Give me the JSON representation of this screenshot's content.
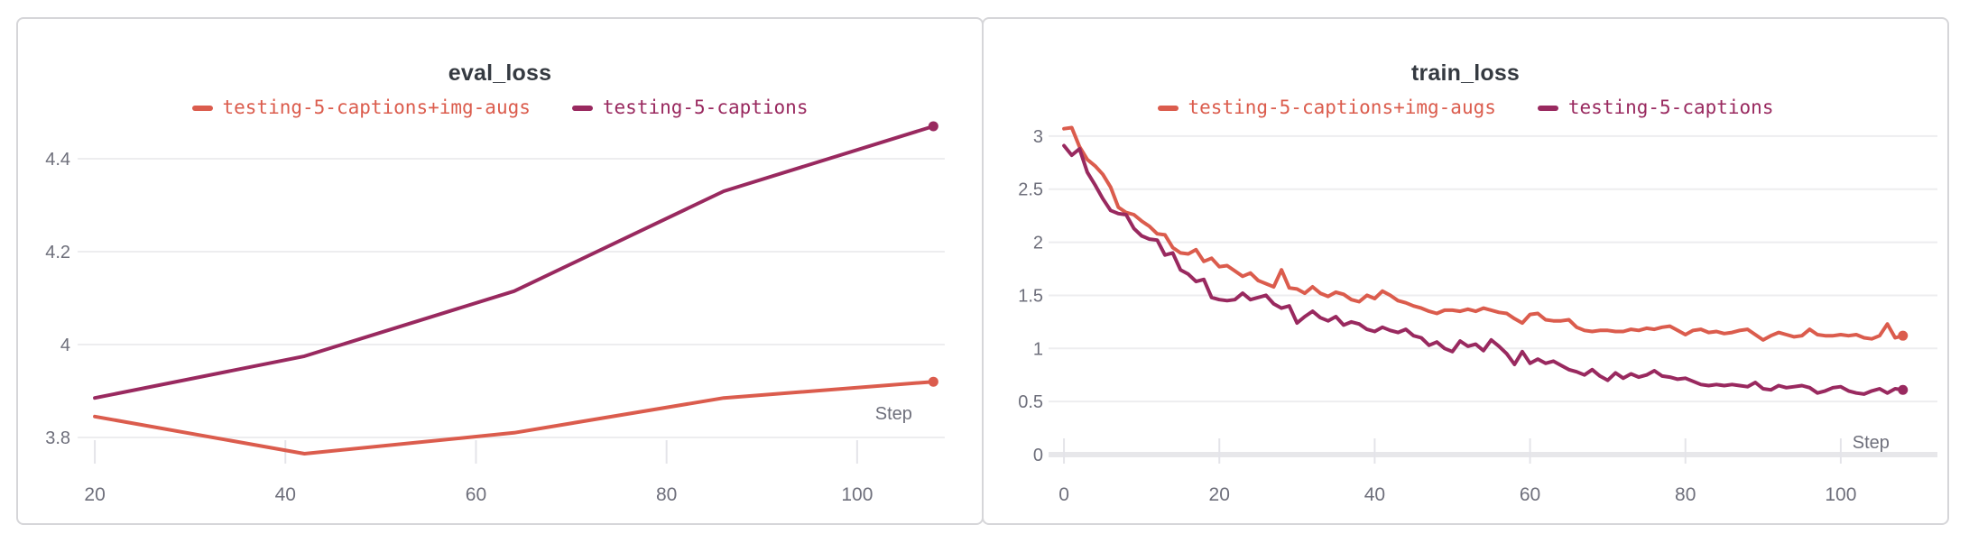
{
  "page": {
    "background": "#ffffff"
  },
  "colors": {
    "accent_red": "#db5c4d",
    "accent_purple": "#99295f",
    "grid": "#ededef",
    "tick_mark": "#e4e4e9",
    "zero_axis_bar": "#e7e7ea",
    "tick_label": "#6e6f7b",
    "title_text": "#353a41",
    "card_border": "#d6d6d9",
    "card_background": "#ffffff"
  },
  "chart_data": [
    {
      "type": "line",
      "title": "eval_loss",
      "xlabel": "Step",
      "grid": true,
      "legend_position": "top-center",
      "xlim": [
        20,
        108
      ],
      "ylim": [
        3.8,
        4.4
      ],
      "x_ticks": [
        {
          "v": 20,
          "label": "20"
        },
        {
          "v": 40,
          "label": "40"
        },
        {
          "v": 60,
          "label": "60"
        },
        {
          "v": 80,
          "label": "80"
        },
        {
          "v": 100,
          "label": "100"
        }
      ],
      "y_ticks": [
        {
          "v": 3.8,
          "label": "3.8"
        },
        {
          "v": 4.0,
          "label": "4"
        },
        {
          "v": 4.2,
          "label": "4.2"
        },
        {
          "v": 4.4,
          "label": "4.4"
        }
      ],
      "series": [
        {
          "name": "testing-5-captions+img-augs",
          "color": "#db5c4d",
          "end_dot": true,
          "points": [
            [
              20,
              3.845
            ],
            [
              42,
              3.765
            ],
            [
              64,
              3.81
            ],
            [
              86,
              3.885
            ],
            [
              108,
              3.92
            ]
          ]
        },
        {
          "name": "testing-5-captions",
          "color": "#99295f",
          "end_dot": true,
          "points": [
            [
              20,
              3.885
            ],
            [
              42,
              3.975
            ],
            [
              64,
              4.115
            ],
            [
              86,
              4.33
            ],
            [
              108,
              4.47
            ]
          ]
        }
      ]
    },
    {
      "type": "line",
      "title": "train_loss",
      "xlabel": "Step",
      "grid": true,
      "legend_position": "top-center",
      "xlim": [
        0,
        108
      ],
      "ylim": [
        0,
        3
      ],
      "x_ticks": [
        {
          "v": 0,
          "label": "0"
        },
        {
          "v": 20,
          "label": "20"
        },
        {
          "v": 40,
          "label": "40"
        },
        {
          "v": 60,
          "label": "60"
        },
        {
          "v": 80,
          "label": "80"
        },
        {
          "v": 100,
          "label": "100"
        }
      ],
      "y_ticks": [
        {
          "v": 0,
          "label": "0"
        },
        {
          "v": 0.5,
          "label": "0.5"
        },
        {
          "v": 1,
          "label": "1"
        },
        {
          "v": 1.5,
          "label": "1.5"
        },
        {
          "v": 2,
          "label": "2"
        },
        {
          "v": 2.5,
          "label": "2.5"
        },
        {
          "v": 3,
          "label": "3"
        }
      ],
      "series": [
        {
          "name": "testing-5-captions+img-augs",
          "color": "#db5c4d",
          "end_dot": true,
          "points": [
            [
              0,
              3.07
            ],
            [
              1,
              3.08
            ],
            [
              2,
              2.9
            ],
            [
              3,
              2.78
            ],
            [
              4,
              2.72
            ],
            [
              5,
              2.64
            ],
            [
              6,
              2.52
            ],
            [
              7,
              2.33
            ],
            [
              8,
              2.28
            ],
            [
              9,
              2.26
            ],
            [
              10,
              2.2
            ],
            [
              11,
              2.15
            ],
            [
              12,
              2.08
            ],
            [
              13,
              2.07
            ],
            [
              14,
              1.95
            ],
            [
              15,
              1.9
            ],
            [
              16,
              1.89
            ],
            [
              17,
              1.93
            ],
            [
              18,
              1.82
            ],
            [
              19,
              1.85
            ],
            [
              20,
              1.77
            ],
            [
              21,
              1.78
            ],
            [
              22,
              1.73
            ],
            [
              23,
              1.68
            ],
            [
              24,
              1.71
            ],
            [
              25,
              1.64
            ],
            [
              26,
              1.61
            ],
            [
              27,
              1.58
            ],
            [
              28,
              1.74
            ],
            [
              29,
              1.57
            ],
            [
              30,
              1.56
            ],
            [
              31,
              1.52
            ],
            [
              32,
              1.58
            ],
            [
              33,
              1.52
            ],
            [
              34,
              1.49
            ],
            [
              35,
              1.53
            ],
            [
              36,
              1.51
            ],
            [
              37,
              1.46
            ],
            [
              38,
              1.44
            ],
            [
              39,
              1.5
            ],
            [
              40,
              1.47
            ],
            [
              41,
              1.54
            ],
            [
              42,
              1.5
            ],
            [
              43,
              1.45
            ],
            [
              44,
              1.43
            ],
            [
              45,
              1.4
            ],
            [
              46,
              1.38
            ],
            [
              47,
              1.35
            ],
            [
              48,
              1.33
            ],
            [
              49,
              1.36
            ],
            [
              50,
              1.36
            ],
            [
              51,
              1.35
            ],
            [
              52,
              1.37
            ],
            [
              53,
              1.35
            ],
            [
              54,
              1.38
            ],
            [
              55,
              1.36
            ],
            [
              56,
              1.34
            ],
            [
              57,
              1.33
            ],
            [
              58,
              1.28
            ],
            [
              59,
              1.24
            ],
            [
              60,
              1.32
            ],
            [
              61,
              1.33
            ],
            [
              62,
              1.27
            ],
            [
              63,
              1.26
            ],
            [
              64,
              1.26
            ],
            [
              65,
              1.27
            ],
            [
              66,
              1.2
            ],
            [
              67,
              1.17
            ],
            [
              68,
              1.16
            ],
            [
              69,
              1.17
            ],
            [
              70,
              1.17
            ],
            [
              71,
              1.16
            ],
            [
              72,
              1.16
            ],
            [
              73,
              1.18
            ],
            [
              74,
              1.17
            ],
            [
              75,
              1.19
            ],
            [
              76,
              1.18
            ],
            [
              77,
              1.2
            ],
            [
              78,
              1.21
            ],
            [
              79,
              1.17
            ],
            [
              80,
              1.13
            ],
            [
              81,
              1.17
            ],
            [
              82,
              1.18
            ],
            [
              83,
              1.15
            ],
            [
              84,
              1.16
            ],
            [
              85,
              1.14
            ],
            [
              86,
              1.15
            ],
            [
              87,
              1.17
            ],
            [
              88,
              1.18
            ],
            [
              89,
              1.13
            ],
            [
              90,
              1.08
            ],
            [
              91,
              1.12
            ],
            [
              92,
              1.15
            ],
            [
              93,
              1.13
            ],
            [
              94,
              1.11
            ],
            [
              95,
              1.12
            ],
            [
              96,
              1.18
            ],
            [
              97,
              1.13
            ],
            [
              98,
              1.12
            ],
            [
              99,
              1.12
            ],
            [
              100,
              1.13
            ],
            [
              101,
              1.12
            ],
            [
              102,
              1.13
            ],
            [
              103,
              1.1
            ],
            [
              104,
              1.09
            ],
            [
              105,
              1.12
            ],
            [
              106,
              1.23
            ],
            [
              107,
              1.1
            ],
            [
              108,
              1.12
            ]
          ]
        },
        {
          "name": "testing-5-captions",
          "color": "#99295f",
          "end_dot": true,
          "points": [
            [
              0,
              2.91
            ],
            [
              1,
              2.82
            ],
            [
              2,
              2.88
            ],
            [
              3,
              2.66
            ],
            [
              4,
              2.54
            ],
            [
              5,
              2.41
            ],
            [
              6,
              2.3
            ],
            [
              7,
              2.27
            ],
            [
              8,
              2.26
            ],
            [
              9,
              2.13
            ],
            [
              10,
              2.06
            ],
            [
              11,
              2.03
            ],
            [
              12,
              2.02
            ],
            [
              13,
              1.88
            ],
            [
              14,
              1.9
            ],
            [
              15,
              1.74
            ],
            [
              16,
              1.7
            ],
            [
              17,
              1.63
            ],
            [
              18,
              1.65
            ],
            [
              19,
              1.48
            ],
            [
              20,
              1.46
            ],
            [
              21,
              1.45
            ],
            [
              22,
              1.46
            ],
            [
              23,
              1.52
            ],
            [
              24,
              1.46
            ],
            [
              25,
              1.48
            ],
            [
              26,
              1.5
            ],
            [
              27,
              1.42
            ],
            [
              28,
              1.38
            ],
            [
              29,
              1.4
            ],
            [
              30,
              1.24
            ],
            [
              31,
              1.3
            ],
            [
              32,
              1.35
            ],
            [
              33,
              1.29
            ],
            [
              34,
              1.26
            ],
            [
              35,
              1.3
            ],
            [
              36,
              1.22
            ],
            [
              37,
              1.25
            ],
            [
              38,
              1.23
            ],
            [
              39,
              1.18
            ],
            [
              40,
              1.16
            ],
            [
              41,
              1.2
            ],
            [
              42,
              1.17
            ],
            [
              43,
              1.15
            ],
            [
              44,
              1.18
            ],
            [
              45,
              1.12
            ],
            [
              46,
              1.1
            ],
            [
              47,
              1.03
            ],
            [
              48,
              1.06
            ],
            [
              49,
              1.0
            ],
            [
              50,
              0.97
            ],
            [
              51,
              1.07
            ],
            [
              52,
              1.02
            ],
            [
              53,
              1.04
            ],
            [
              54,
              0.98
            ],
            [
              55,
              1.08
            ],
            [
              56,
              1.02
            ],
            [
              57,
              0.95
            ],
            [
              58,
              0.85
            ],
            [
              59,
              0.97
            ],
            [
              60,
              0.86
            ],
            [
              61,
              0.9
            ],
            [
              62,
              0.86
            ],
            [
              63,
              0.88
            ],
            [
              64,
              0.84
            ],
            [
              65,
              0.8
            ],
            [
              66,
              0.78
            ],
            [
              67,
              0.75
            ],
            [
              68,
              0.8
            ],
            [
              69,
              0.74
            ],
            [
              70,
              0.7
            ],
            [
              71,
              0.77
            ],
            [
              72,
              0.72
            ],
            [
              73,
              0.76
            ],
            [
              74,
              0.73
            ],
            [
              75,
              0.75
            ],
            [
              76,
              0.79
            ],
            [
              77,
              0.74
            ],
            [
              78,
              0.73
            ],
            [
              79,
              0.71
            ],
            [
              80,
              0.72
            ],
            [
              81,
              0.69
            ],
            [
              82,
              0.66
            ],
            [
              83,
              0.65
            ],
            [
              84,
              0.66
            ],
            [
              85,
              0.65
            ],
            [
              86,
              0.66
            ],
            [
              87,
              0.65
            ],
            [
              88,
              0.64
            ],
            [
              89,
              0.68
            ],
            [
              90,
              0.62
            ],
            [
              91,
              0.61
            ],
            [
              92,
              0.65
            ],
            [
              93,
              0.63
            ],
            [
              94,
              0.64
            ],
            [
              95,
              0.65
            ],
            [
              96,
              0.63
            ],
            [
              97,
              0.58
            ],
            [
              98,
              0.6
            ],
            [
              99,
              0.63
            ],
            [
              100,
              0.64
            ],
            [
              101,
              0.6
            ],
            [
              102,
              0.58
            ],
            [
              103,
              0.57
            ],
            [
              104,
              0.6
            ],
            [
              105,
              0.62
            ],
            [
              106,
              0.58
            ],
            [
              107,
              0.62
            ],
            [
              108,
              0.61
            ]
          ]
        }
      ]
    }
  ]
}
